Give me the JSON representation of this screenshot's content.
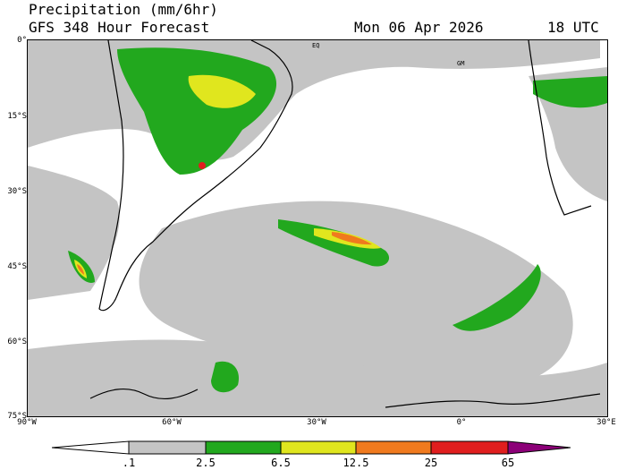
{
  "header": {
    "title_line1": "Precipitation (mm/6hr)",
    "title_line2": "GFS 348 Hour Forecast",
    "date": "Mon 06 Apr 2026",
    "time": "18 UTC"
  },
  "axes": {
    "lat_ticks": [
      "0°",
      "15°S",
      "30°S",
      "45°S",
      "60°S",
      "75°S"
    ],
    "lon_ticks": [
      "90°W",
      "60°W",
      "30°W",
      "0°",
      "30°E"
    ]
  },
  "map_labels": {
    "eq": "EQ",
    "gm": "GM"
  },
  "legend": {
    "labels": [
      ".1",
      "2.5",
      "6.5",
      "12.5",
      "25",
      "65"
    ],
    "colors": [
      "#ffffff",
      "#c4c4c4",
      "#22a81e",
      "#e0e61e",
      "#f07a1e",
      "#e01e1e",
      "#8c0078"
    ]
  },
  "colors": {
    "land_outline": "#000000",
    "light_rain": "#c4c4c4",
    "moderate": "#22a81e",
    "heavy": "#e0e61e",
    "very_heavy": "#f07a1e",
    "extreme": "#e01e1e"
  }
}
